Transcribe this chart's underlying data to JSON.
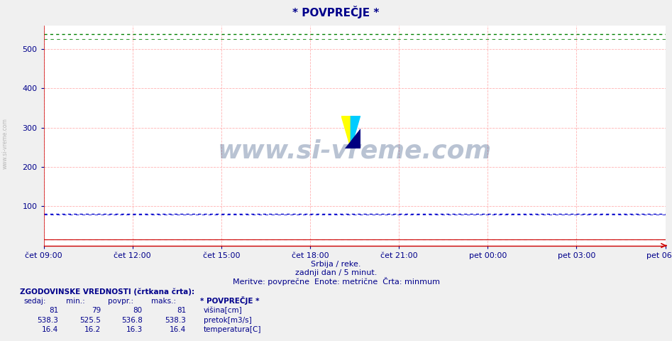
{
  "title": "* POVPREČJE *",
  "title_color": "#00008b",
  "background_color": "#f0f0f0",
  "plot_bg_color": "#ffffff",
  "ylim": [
    0,
    560
  ],
  "yticks": [
    100,
    200,
    300,
    400,
    500
  ],
  "grid_color": "#ffaaaa",
  "watermark_text": "www.si-vreme.com",
  "watermark_color": "#1a3a6e",
  "watermark_alpha": 0.3,
  "subtitle1": "Srbija / reke.",
  "subtitle2": "zadnji dan / 5 minut.",
  "subtitle3": "Meritve: povprečne  Enote: metrične  Črta: minmum",
  "subtitle_color": "#00008b",
  "xtick_labels": [
    "čet 09:00",
    "čet 12:00",
    "čet 15:00",
    "čet 18:00",
    "čet 21:00",
    "pet 00:00",
    "pet 03:00",
    "pet 06:00"
  ],
  "n_points": 288,
  "visina_value": 81,
  "visina_min": 79,
  "visina_povpr": 80,
  "visina_maks": 81,
  "visina_color": "#0000cc",
  "pretok_value": 538.3,
  "pretok_min": 525.5,
  "pretok_povpr": 536.8,
  "pretok_maks": 538.3,
  "pretok_color": "#008000",
  "temp_value": 16.4,
  "temp_min": 16.2,
  "temp_povpr": 16.3,
  "temp_maks": 16.4,
  "temp_color": "#cc0000",
  "stats_color": "#00008b",
  "axis_color": "#cc0000",
  "left_sidebar_color": "#aaaaaa",
  "stats_header": "ZGODOVINSKE VREDNOSTI (črtkana črta):",
  "col_headers": [
    "sedaj:",
    "min.:",
    "povpr.:",
    "maks.:"
  ],
  "legend_title": "* POVPREČJE *",
  "row_labels": [
    "višina[cm]",
    "pretok[m3/s]",
    "temperatura[C]"
  ]
}
